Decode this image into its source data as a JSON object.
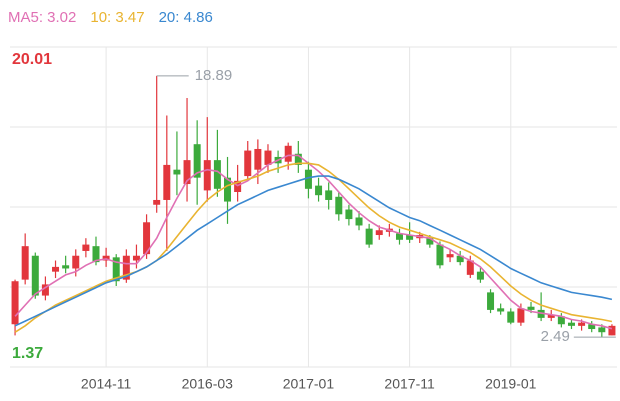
{
  "chart_data": {
    "type": "candlestick",
    "categories": [
      null,
      null,
      null,
      null,
      null,
      null,
      null,
      null,
      null,
      "2014-11",
      null,
      null,
      null,
      null,
      null,
      null,
      null,
      null,
      null,
      "2016-03",
      null,
      null,
      null,
      null,
      null,
      null,
      null,
      null,
      null,
      "2017-01",
      null,
      null,
      null,
      null,
      null,
      null,
      null,
      null,
      null,
      "2017-11",
      null,
      null,
      null,
      null,
      null,
      null,
      null,
      null,
      null,
      "2019-01",
      null,
      null,
      null,
      null,
      null,
      null,
      null,
      null,
      null,
      null
    ],
    "open": [
      3.3,
      6.1,
      7.6,
      5.1,
      6.6,
      7.0,
      6.8,
      7.9,
      8.2,
      7.3,
      7.5,
      6.1,
      7.3,
      7.7,
      10.8,
      11.1,
      13.0,
      12.1,
      14.6,
      11.7,
      13.6,
      12.5,
      11.6,
      12.6,
      13.0,
      13.3,
      13.8,
      13.5,
      14.0,
      13.0,
      12.0,
      11.7,
      11.3,
      10.5,
      10.0,
      9.3,
      8.9,
      9.1,
      9.0,
      8.9,
      8.7,
      8.7,
      8.3,
      7.5,
      7.6,
      6.4,
      6.6,
      5.3,
      4.3,
      4.1,
      3.4,
      4.4,
      4.2,
      3.7,
      3.8,
      3.4,
      3.2,
      3.3,
      3.1,
      2.6
    ],
    "high": [
      6.1,
      9.0,
      7.8,
      6.3,
      7.3,
      7.6,
      8.0,
      8.7,
      8.8,
      8.1,
      7.7,
      8.0,
      8.3,
      10.2,
      18.89,
      16.4,
      15.4,
      17.5,
      16.1,
      16.3,
      15.5,
      13.8,
      13.3,
      14.8,
      14.9,
      14.6,
      14.2,
      14.7,
      14.8,
      13.5,
      12.5,
      12.2,
      11.6,
      10.8,
      10.4,
      9.6,
      9.5,
      9.6,
      9.3,
      9.7,
      9.1,
      8.9,
      8.5,
      8.0,
      7.9,
      7.6,
      6.9,
      5.5,
      4.6,
      4.3,
      4.6,
      4.7,
      5.3,
      4.2,
      4.0,
      3.6,
      3.6,
      3.5,
      3.3,
      3.3
    ],
    "low": [
      2.6,
      5.8,
      4.9,
      4.8,
      6.2,
      6.5,
      6.3,
      7.5,
      7.0,
      6.9,
      5.7,
      5.9,
      6.8,
      7.4,
      10.3,
      7.9,
      11.4,
      11.0,
      10.8,
      11.0,
      11.3,
      9.6,
      11.0,
      12.3,
      12.1,
      12.8,
      12.8,
      13.0,
      12.8,
      11.2,
      11.0,
      10.5,
      9.8,
      9.5,
      9.2,
      8.1,
      8.6,
      8.8,
      8.3,
      8.4,
      8.4,
      8.1,
      6.8,
      7.2,
      7.0,
      6.2,
      5.9,
      4.0,
      3.9,
      3.3,
      3.2,
      4.0,
      3.5,
      3.5,
      3.1,
      3.0,
      2.9,
      2.8,
      2.49,
      2.6
    ],
    "close": [
      6.0,
      8.2,
      5.1,
      5.8,
      6.9,
      6.8,
      7.6,
      8.3,
      7.2,
      7.6,
      6.0,
      7.6,
      7.6,
      9.7,
      11.1,
      13.3,
      12.7,
      13.6,
      12.5,
      13.6,
      11.8,
      11.0,
      12.3,
      14.2,
      14.3,
      14.2,
      13.4,
      14.5,
      13.3,
      11.8,
      11.4,
      11.1,
      10.2,
      9.9,
      9.5,
      8.3,
      9.2,
      9.3,
      8.6,
      8.6,
      8.9,
      8.3,
      7.0,
      7.7,
      7.2,
      7.3,
      6.1,
      4.2,
      4.1,
      3.4,
      4.3,
      4.2,
      3.7,
      3.9,
      3.3,
      3.2,
      3.4,
      3.0,
      2.8,
      3.2
    ],
    "up_color": "#e2363c",
    "down_color": "#3caa3c",
    "series": [
      {
        "name": "MA5: 3.02",
        "color": "#e070b4",
        "values": [
          3.8,
          4.5,
          5.2,
          5.6,
          6.0,
          6.4,
          6.6,
          7.0,
          7.3,
          7.4,
          7.2,
          7.1,
          7.1,
          7.8,
          8.7,
          10.0,
          11.2,
          12.3,
          12.8,
          13.0,
          12.9,
          12.4,
          12.0,
          12.3,
          12.8,
          13.3,
          13.6,
          13.9,
          13.9,
          13.4,
          12.9,
          12.3,
          11.6,
          10.9,
          10.3,
          9.8,
          9.4,
          9.2,
          9.0,
          8.9,
          8.8,
          8.7,
          8.3,
          8.0,
          7.6,
          7.3,
          6.9,
          6.2,
          5.5,
          4.8,
          4.3,
          4.1,
          4.0,
          3.9,
          3.8,
          3.6,
          3.5,
          3.3,
          3.2,
          3.02
        ]
      },
      {
        "name": "10: 3.47",
        "color": "#e9b431",
        "values": [
          2.8,
          3.2,
          3.7,
          4.1,
          4.5,
          4.8,
          5.1,
          5.4,
          5.7,
          6.0,
          6.2,
          6.4,
          6.6,
          6.9,
          7.3,
          8.0,
          8.8,
          9.6,
          10.4,
          11.1,
          11.6,
          12.0,
          12.2,
          12.4,
          12.6,
          12.9,
          13.1,
          13.3,
          13.4,
          13.4,
          13.3,
          12.9,
          12.4,
          11.8,
          11.2,
          10.6,
          10.1,
          9.7,
          9.4,
          9.2,
          9.0,
          8.8,
          8.6,
          8.4,
          8.1,
          7.8,
          7.4,
          6.9,
          6.3,
          5.7,
          5.2,
          4.8,
          4.5,
          4.3,
          4.1,
          3.9,
          3.8,
          3.7,
          3.6,
          3.47
        ]
      },
      {
        "name": "20: 4.86",
        "color": "#3a88d0",
        "values": [
          3.2,
          3.5,
          3.8,
          4.1,
          4.4,
          4.7,
          5.0,
          5.3,
          5.6,
          5.9,
          6.1,
          6.3,
          6.6,
          6.9,
          7.3,
          7.7,
          8.2,
          8.7,
          9.2,
          9.6,
          10.0,
          10.4,
          10.8,
          11.1,
          11.4,
          11.7,
          11.9,
          12.1,
          12.3,
          12.5,
          12.6,
          12.6,
          12.4,
          12.1,
          11.8,
          11.4,
          11.0,
          10.6,
          10.3,
          10.0,
          9.8,
          9.5,
          9.2,
          8.9,
          8.6,
          8.3,
          8.0,
          7.6,
          7.2,
          6.8,
          6.5,
          6.2,
          5.9,
          5.7,
          5.5,
          5.3,
          5.2,
          5.1,
          5.0,
          4.86
        ]
      }
    ],
    "ylim": [
      1.37,
      20.01
    ]
  }
}
